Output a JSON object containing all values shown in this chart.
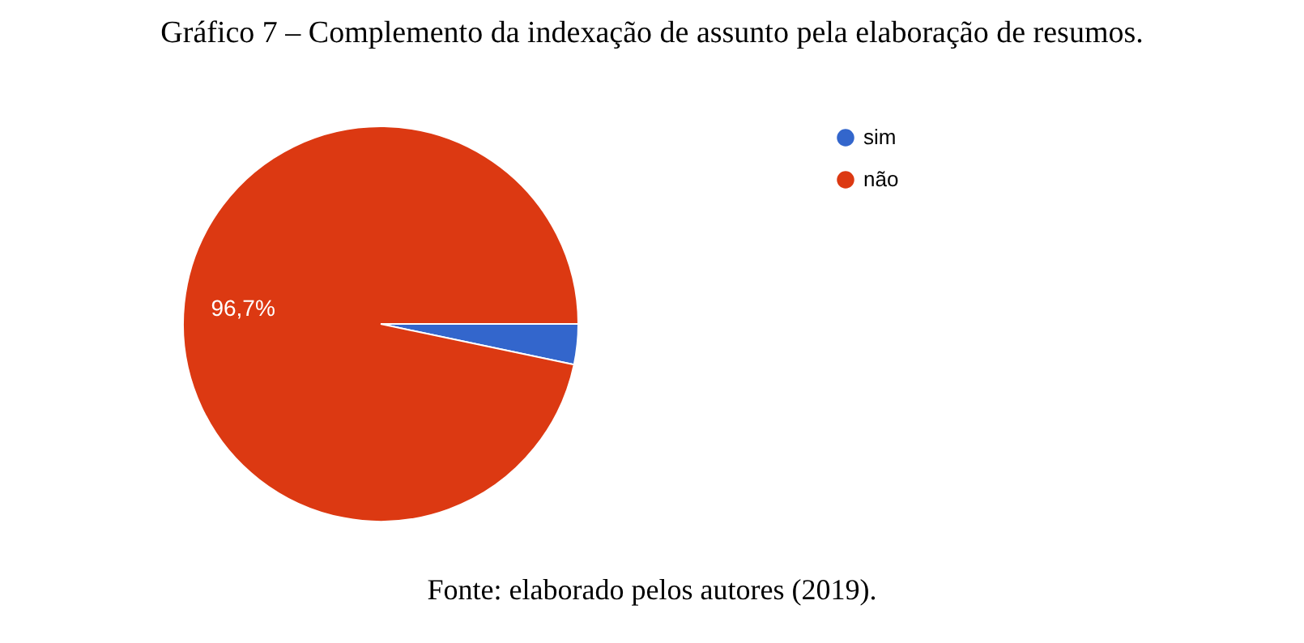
{
  "chart_data": {
    "type": "pie",
    "title": "Gráfico 7 – Complemento da indexação de assunto pela elaboração de resumos.",
    "categories": [
      "sim",
      "não"
    ],
    "values": [
      3.3,
      96.7
    ],
    "colors": [
      "#3366cc",
      "#dc3912"
    ],
    "value_labels": [
      null,
      "96,7%"
    ],
    "legend": "top right",
    "annotations": [
      "Fonte: elaborado pelos autores (2019)."
    ]
  }
}
